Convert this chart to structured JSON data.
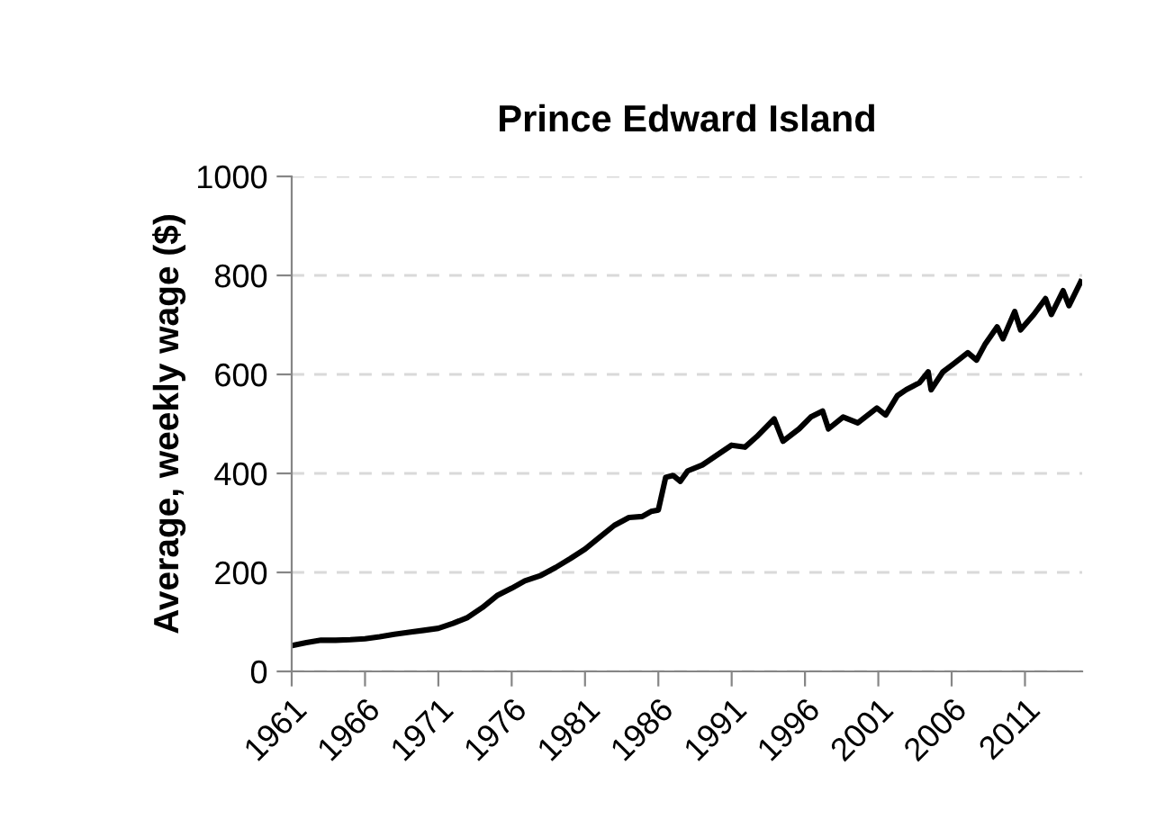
{
  "chart_data": {
    "type": "line",
    "title": "Prince Edward Island",
    "ylabel": "Average, weekly wage ($)",
    "x": [
      1961,
      1962,
      1963,
      1964,
      1965,
      1966,
      1967,
      1968,
      1969,
      1970,
      1971,
      1972,
      1973,
      1974,
      1975,
      1976,
      1976.9,
      1978,
      1979,
      1980,
      1981,
      1982,
      1983,
      1984,
      1984.9,
      1985.5,
      1986,
      1986.5,
      1987,
      1987.5,
      1988,
      1989,
      1990,
      1991,
      1991.9,
      1992.7,
      1993.9,
      1994.5,
      1995.6,
      1996.4,
      1997.2,
      1997.6,
      1998.6,
      1999.6,
      2000.9,
      2001.5,
      2002.3,
      2002.9,
      2003.8,
      2004.4,
      2004.6,
      2005.4,
      2006.2,
      2007.1,
      2007.7,
      2008.3,
      2009.1,
      2009.5,
      2010.3,
      2010.7,
      2011.6,
      2012.4,
      2012.8,
      2013.6,
      2014.0,
      2014.8
    ],
    "series": [
      {
        "color": "#000000",
        "values": [
          52,
          58,
          63,
          63,
          64,
          66,
          70,
          75,
          79,
          83,
          87,
          97,
          109,
          129,
          153,
          168,
          183,
          194,
          210,
          228,
          247,
          271,
          295,
          311,
          313,
          323,
          326,
          392,
          396,
          384,
          405,
          417,
          437,
          457,
          453,
          474,
          510,
          465,
          490,
          514,
          526,
          490,
          514,
          502,
          532,
          518,
          557,
          569,
          583,
          605,
          569,
          605,
          623,
          644,
          629,
          662,
          696,
          672,
          727,
          690,
          721,
          753,
          721,
          769,
          739,
          787
        ]
      }
    ],
    "xlim": [
      1961,
      2014.9
    ],
    "xticks": [
      1961,
      1966,
      1971,
      1976,
      1981,
      1986,
      1991,
      1996,
      2001,
      2006,
      2011
    ],
    "ylim": [
      0,
      1000
    ],
    "yticks": [
      0,
      200,
      400,
      600,
      800,
      1000
    ],
    "grid": "y",
    "marker": "none",
    "line_style": "solid",
    "legend": false
  }
}
